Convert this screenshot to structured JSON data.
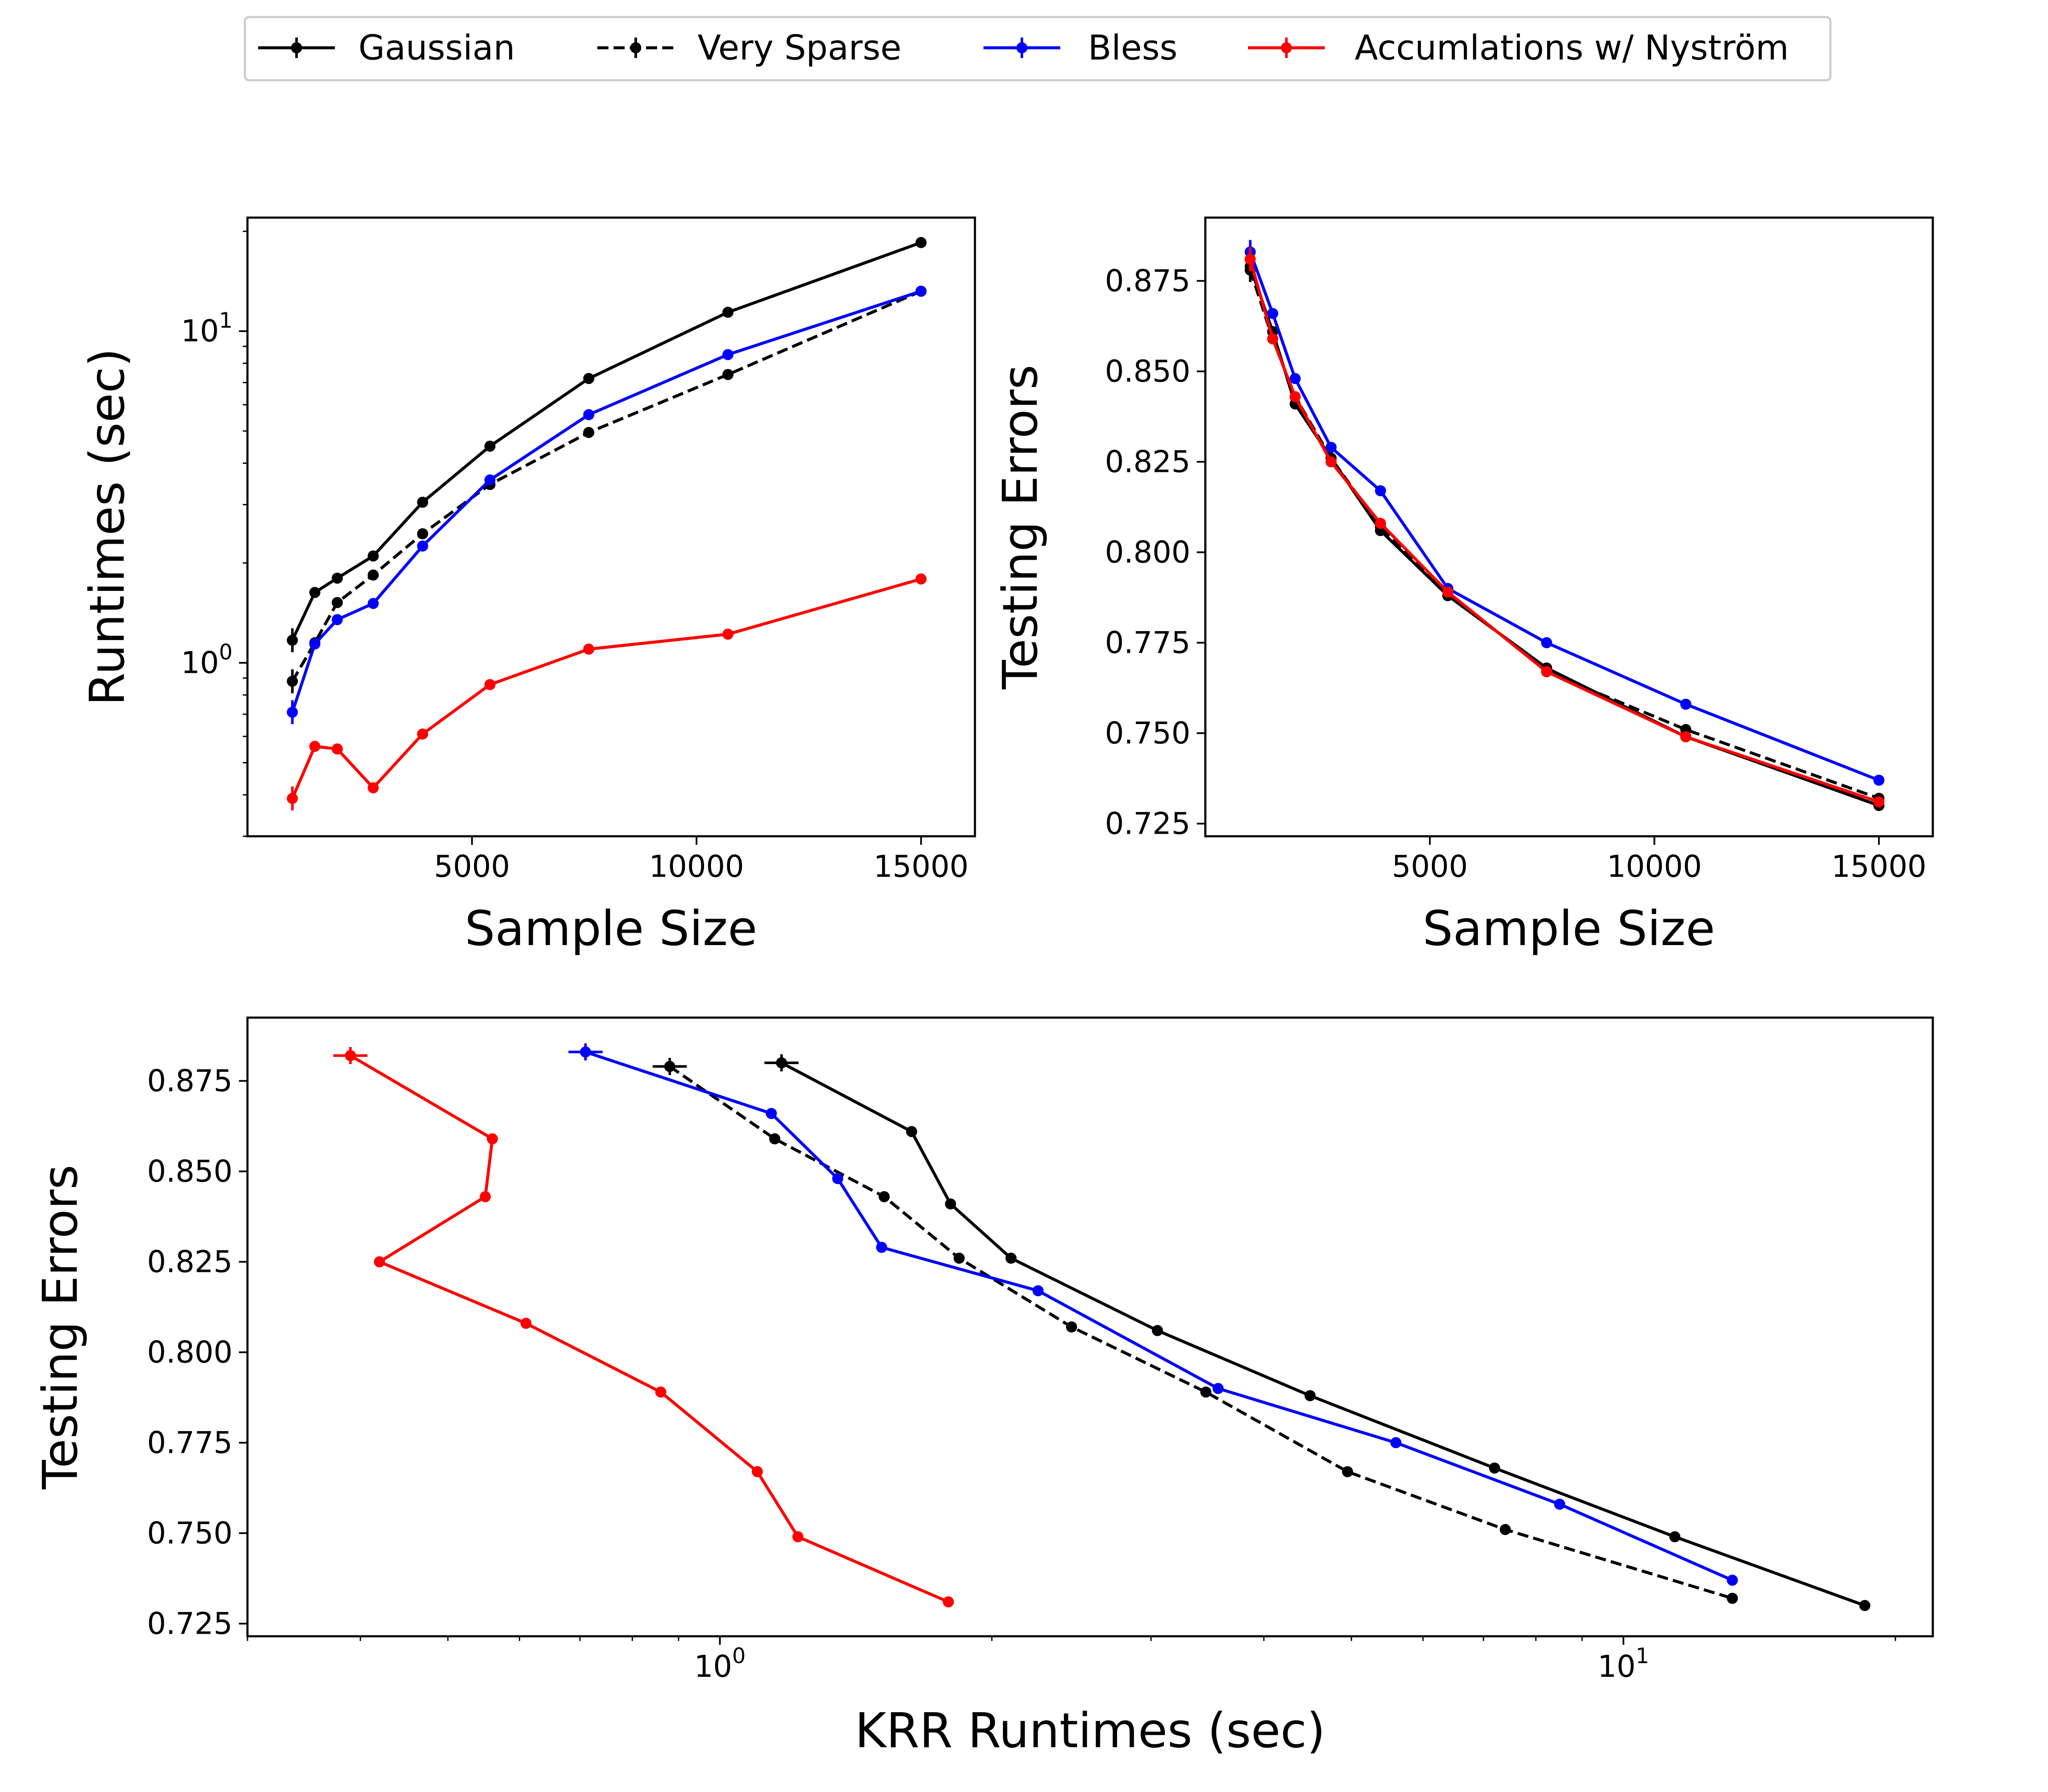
{
  "legend": {
    "location": "top-center",
    "entries": [
      {
        "label": "Gaussian",
        "color": "#000000",
        "dash": "solid"
      },
      {
        "label": "Very Sparse",
        "color": "#000000",
        "dash": "dashed"
      },
      {
        "label": "Bless",
        "color": "#0000ff",
        "dash": "solid"
      },
      {
        "label": "Accumlations w/ Nyström",
        "color": "#ff0000",
        "dash": "solid"
      }
    ]
  },
  "chart_data": [
    {
      "id": "runtime",
      "type": "line",
      "xscale": "linear",
      "yscale": "log",
      "xlabel": "Sample Size",
      "ylabel": "Runtimes (sec)",
      "xlim": [
        0,
        16200
      ],
      "ylim": [
        0.3,
        22
      ],
      "xticks": [
        5000,
        10000,
        15000
      ],
      "xtick_labels": [
        "5000",
        "10000",
        "15000"
      ],
      "yticks_major": [
        1,
        10
      ],
      "ytick_labels": [
        "10^0",
        "10^1"
      ],
      "x": [
        1000,
        1500,
        2000,
        2800,
        3900,
        5400,
        7600,
        10700,
        15000
      ],
      "series": [
        {
          "name": "Gaussian",
          "color": "#000000",
          "dash": "solid",
          "values": [
            1.17,
            1.63,
            1.8,
            2.1,
            3.05,
            4.5,
            7.2,
            11.4,
            18.5
          ]
        },
        {
          "name": "Very Sparse",
          "color": "#000000",
          "dash": "dashed",
          "values": [
            0.88,
            1.15,
            1.52,
            1.84,
            2.45,
            3.45,
            4.95,
            7.4,
            13.2
          ]
        },
        {
          "name": "Bless",
          "color": "#0000ff",
          "dash": "solid",
          "values": [
            0.71,
            1.14,
            1.35,
            1.51,
            2.25,
            3.56,
            5.6,
            8.5,
            13.2
          ]
        },
        {
          "name": "Accumlations w/ Nyström",
          "color": "#ff0000",
          "dash": "solid",
          "values": [
            0.39,
            0.56,
            0.55,
            0.42,
            0.61,
            0.86,
            1.1,
            1.22,
            1.79
          ]
        }
      ]
    },
    {
      "id": "error",
      "type": "line",
      "xscale": "linear",
      "yscale": "linear",
      "xlabel": "Sample Size",
      "ylabel": "Testing Errors",
      "xlim": [
        0,
        16200
      ],
      "ylim": [
        0.7215,
        0.8925
      ],
      "xticks": [
        5000,
        10000,
        15000
      ],
      "xtick_labels": [
        "5000",
        "10000",
        "15000"
      ],
      "yticks": [
        0.725,
        0.75,
        0.775,
        0.8,
        0.825,
        0.85,
        0.875
      ],
      "ytick_labels": [
        "0.725",
        "0.750",
        "0.775",
        "0.800",
        "0.825",
        "0.850",
        "0.875"
      ],
      "x": [
        1000,
        1500,
        2000,
        2800,
        3900,
        5400,
        7600,
        10700,
        15000
      ],
      "series": [
        {
          "name": "Gaussian",
          "color": "#000000",
          "dash": "solid",
          "values": [
            0.879,
            0.861,
            0.841,
            0.826,
            0.806,
            0.788,
            0.768,
            0.749,
            0.73
          ]
        },
        {
          "name": "Very Sparse",
          "color": "#000000",
          "dash": "dashed",
          "values": [
            0.878,
            0.859,
            0.843,
            0.826,
            0.807,
            0.789,
            0.767,
            0.751,
            0.732
          ]
        },
        {
          "name": "Bless",
          "color": "#0000ff",
          "dash": "solid",
          "values": [
            0.883,
            0.866,
            0.848,
            0.829,
            0.817,
            0.79,
            0.775,
            0.758,
            0.737
          ]
        },
        {
          "name": "Accumlations w/ Nyström",
          "color": "#ff0000",
          "dash": "solid",
          "values": [
            0.881,
            0.859,
            0.843,
            0.825,
            0.808,
            0.789,
            0.767,
            0.749,
            0.731
          ]
        }
      ]
    },
    {
      "id": "tradeoff",
      "type": "line",
      "xscale": "log",
      "yscale": "linear",
      "xlabel": "KRR Runtimes (sec)",
      "ylabel": "Testing Errors",
      "xlim": [
        0.3,
        22
      ],
      "ylim": [
        0.7215,
        0.8925
      ],
      "xticks_major": [
        1,
        10
      ],
      "xtick_labels": [
        "10^0",
        "10^1"
      ],
      "yticks": [
        0.725,
        0.75,
        0.775,
        0.8,
        0.825,
        0.85,
        0.875
      ],
      "ytick_labels": [
        "0.725",
        "0.750",
        "0.775",
        "0.800",
        "0.825",
        "0.850",
        "0.875"
      ],
      "series": [
        {
          "name": "Gaussian",
          "color": "#000000",
          "dash": "solid",
          "x": [
            1.17,
            1.63,
            1.8,
            2.1,
            3.05,
            4.5,
            7.2,
            11.4,
            18.5
          ],
          "values": [
            0.88,
            0.861,
            0.841,
            0.826,
            0.806,
            0.788,
            0.768,
            0.749,
            0.73
          ]
        },
        {
          "name": "Very Sparse",
          "color": "#000000",
          "dash": "dashed",
          "x": [
            0.88,
            1.15,
            1.52,
            1.84,
            2.45,
            3.45,
            4.95,
            7.4,
            13.2
          ],
          "values": [
            0.879,
            0.859,
            0.843,
            0.826,
            0.807,
            0.789,
            0.767,
            0.751,
            0.732
          ]
        },
        {
          "name": "Bless",
          "color": "#0000ff",
          "dash": "solid",
          "x": [
            0.71,
            1.14,
            1.35,
            1.51,
            2.25,
            3.56,
            5.6,
            8.5,
            13.2
          ],
          "values": [
            0.883,
            0.866,
            0.848,
            0.829,
            0.817,
            0.79,
            0.775,
            0.758,
            0.737
          ]
        },
        {
          "name": "Accumlations w/ Nyström",
          "color": "#ff0000",
          "dash": "solid",
          "x": [
            0.39,
            0.56,
            0.55,
            0.42,
            0.61,
            0.86,
            1.1,
            1.22,
            1.79
          ],
          "values": [
            0.882,
            0.859,
            0.843,
            0.825,
            0.808,
            0.789,
            0.767,
            0.749,
            0.731
          ]
        }
      ]
    }
  ]
}
